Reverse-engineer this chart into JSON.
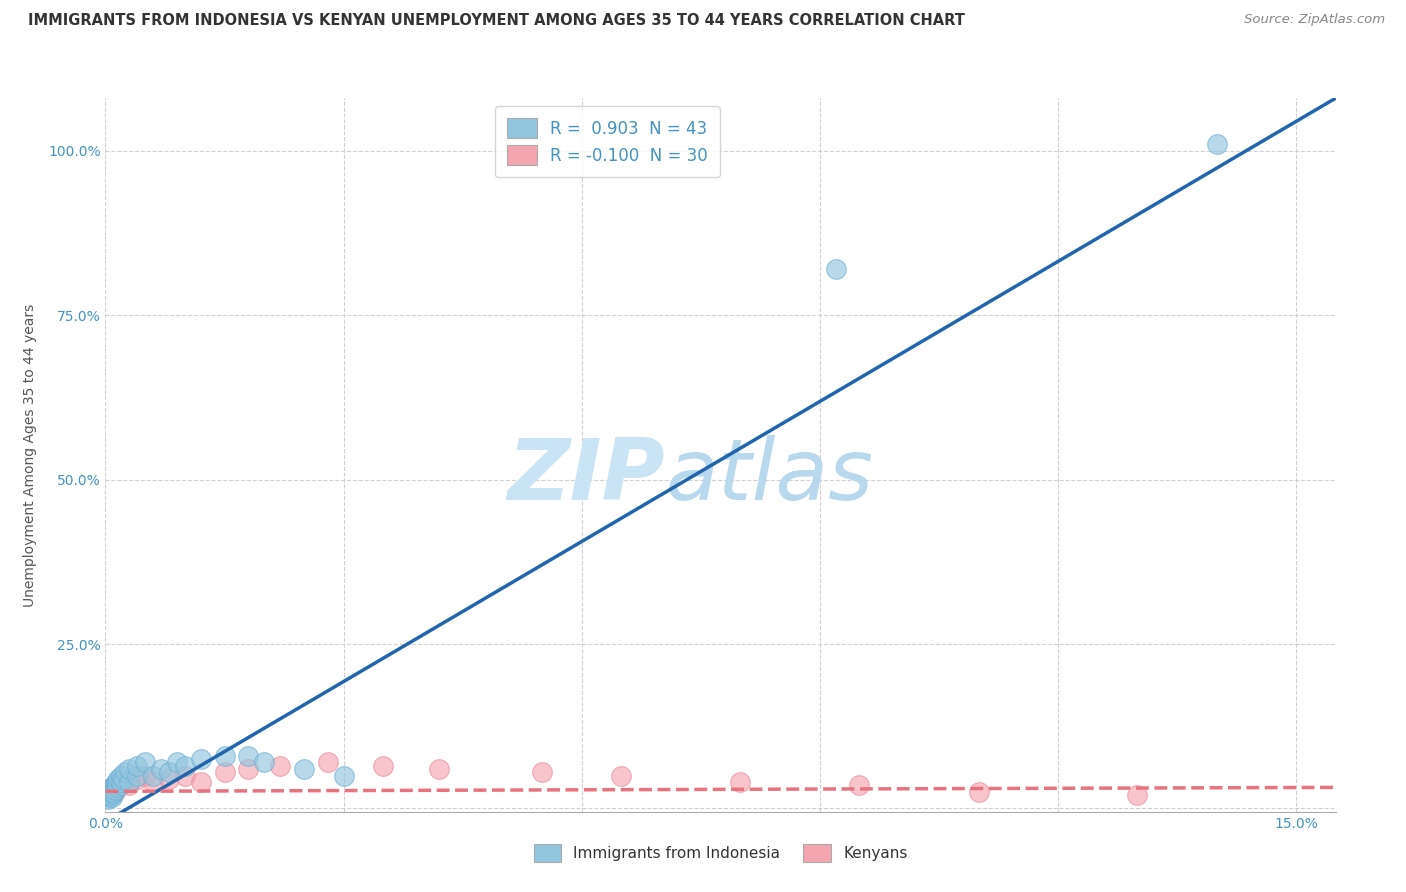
{
  "title": "IMMIGRANTS FROM INDONESIA VS KENYAN UNEMPLOYMENT AMONG AGES 35 TO 44 YEARS CORRELATION CHART",
  "source": "Source: ZipAtlas.com",
  "ylabel": "Unemployment Among Ages 35 to 44 years",
  "xlim": [
    0.0,
    0.155
  ],
  "ylim": [
    -0.005,
    1.08
  ],
  "blue_color": "#92C5DE",
  "blue_edge_color": "#6aafd6",
  "pink_color": "#F4A6B0",
  "pink_edge_color": "#e88a96",
  "trend_blue_color": "#2166AC",
  "trend_pink_color": "#E8737F",
  "grid_color": "#d0d0d0",
  "watermark_zip_color": "#C8E4F5",
  "watermark_atlas_color": "#B8D8EE",
  "legend_r_blue": " 0.903",
  "legend_n_blue": "43",
  "legend_r_pink": "-0.100",
  "legend_n_pink": "30",
  "blue_trend_x0": 0.0,
  "blue_trend_y0": -0.02,
  "blue_trend_x1": 0.155,
  "blue_trend_y1": 1.08,
  "pink_trend_x0": 0.0,
  "pink_trend_y0": 0.026,
  "pink_trend_x1": 0.155,
  "pink_trend_y1": 0.032,
  "blue_scatter_x": [
    0.0002,
    0.0003,
    0.0004,
    0.0004,
    0.0005,
    0.0005,
    0.0006,
    0.0006,
    0.0007,
    0.0008,
    0.0008,
    0.0009,
    0.001,
    0.001,
    0.0012,
    0.0012,
    0.0013,
    0.0014,
    0.0015,
    0.0016,
    0.002,
    0.002,
    0.002,
    0.0022,
    0.0025,
    0.003,
    0.003,
    0.004,
    0.004,
    0.005,
    0.006,
    0.007,
    0.008,
    0.009,
    0.01,
    0.012,
    0.015,
    0.018,
    0.02,
    0.025,
    0.03,
    0.092,
    0.14
  ],
  "blue_scatter_y": [
    0.02,
    0.015,
    0.025,
    0.018,
    0.022,
    0.03,
    0.028,
    0.02,
    0.025,
    0.032,
    0.018,
    0.022,
    0.03,
    0.025,
    0.035,
    0.028,
    0.04,
    0.032,
    0.038,
    0.045,
    0.035,
    0.04,
    0.05,
    0.045,
    0.055,
    0.04,
    0.06,
    0.05,
    0.065,
    0.07,
    0.05,
    0.06,
    0.055,
    0.07,
    0.065,
    0.075,
    0.08,
    0.08,
    0.07,
    0.06,
    0.05,
    0.82,
    1.01
  ],
  "pink_scatter_x": [
    0.0002,
    0.0003,
    0.0004,
    0.0005,
    0.0006,
    0.0007,
    0.0008,
    0.001,
    0.0012,
    0.0015,
    0.002,
    0.003,
    0.004,
    0.005,
    0.006,
    0.008,
    0.01,
    0.012,
    0.015,
    0.018,
    0.022,
    0.028,
    0.035,
    0.042,
    0.055,
    0.065,
    0.08,
    0.095,
    0.11,
    0.13
  ],
  "pink_scatter_y": [
    0.025,
    0.02,
    0.03,
    0.025,
    0.028,
    0.022,
    0.032,
    0.03,
    0.025,
    0.035,
    0.04,
    0.035,
    0.045,
    0.05,
    0.04,
    0.045,
    0.05,
    0.04,
    0.055,
    0.06,
    0.065,
    0.07,
    0.065,
    0.06,
    0.055,
    0.05,
    0.04,
    0.035,
    0.025,
    0.02
  ]
}
